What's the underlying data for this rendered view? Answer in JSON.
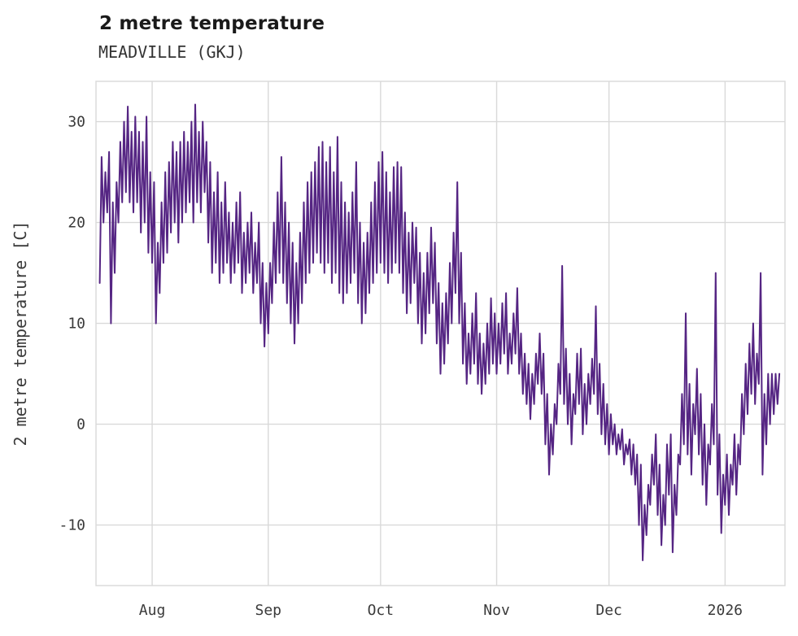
{
  "header": {
    "title": "2 metre temperature",
    "subtitle": "MEADVILLE (GKJ)"
  },
  "colors": {
    "line": "#552583",
    "grid": "#d9d9d9",
    "tick_text": "#3a3a3a",
    "title_text": "#1a1a1a"
  },
  "chart_data": {
    "type": "line",
    "title": "2 metre temperature",
    "subtitle": "MEADVILLE (GKJ)",
    "xlabel": "",
    "ylabel": "2 metre temperature [C]",
    "ylim": [
      -16,
      34
    ],
    "y_ticks": [
      30,
      20,
      10,
      0,
      -10
    ],
    "x_range_days": [
      -1,
      183
    ],
    "x_ticks": [
      {
        "label": "Aug",
        "day": 14
      },
      {
        "label": "Sep",
        "day": 45
      },
      {
        "label": "Oct",
        "day": 75
      },
      {
        "label": "Nov",
        "day": 106
      },
      {
        "label": "Dec",
        "day": 136
      },
      {
        "label": "2026",
        "day": 167
      }
    ],
    "grid": true,
    "legend": "none",
    "line_color": "#552583",
    "points_per_day": 2,
    "series_name": "2 metre temperature [C]",
    "values": [
      14,
      26.5,
      20,
      25,
      21,
      27,
      10,
      22,
      15,
      24,
      20,
      28,
      22,
      30,
      23,
      31.5,
      22,
      29,
      21,
      30.5,
      22,
      29,
      19,
      28,
      20,
      30.5,
      17,
      25,
      16,
      24,
      10,
      18,
      13,
      22,
      16,
      25,
      17,
      26,
      19,
      28,
      20,
      27,
      18,
      28,
      20,
      29,
      21,
      28,
      22,
      30,
      20,
      31.7,
      22,
      29,
      21,
      30,
      23,
      28,
      18,
      26,
      15,
      23,
      16,
      25,
      14,
      22,
      15,
      24,
      16,
      21,
      14,
      20,
      15,
      22,
      16,
      23,
      13,
      19,
      14,
      20,
      15,
      21,
      13,
      18,
      14,
      20,
      10,
      16,
      7.7,
      14,
      9,
      16,
      12,
      20,
      14,
      23,
      15,
      26.5,
      14,
      22,
      12,
      20,
      10,
      18,
      8,
      16,
      10,
      19,
      12,
      22,
      14,
      24,
      15,
      25,
      16,
      26,
      17,
      27.5,
      16,
      28,
      15,
      26,
      16,
      27.5,
      14,
      25,
      15,
      28.5,
      13,
      24,
      12,
      22,
      13,
      21,
      14,
      23,
      15,
      26,
      12,
      20,
      10,
      18,
      11,
      19,
      13,
      22,
      14,
      24,
      15,
      26,
      16,
      27,
      15,
      25,
      14,
      23,
      15,
      25.5,
      16,
      26,
      15,
      25.5,
      13,
      21,
      11,
      19,
      12,
      20,
      14,
      19.5,
      10,
      17,
      8,
      15,
      9,
      17,
      11,
      19.5,
      12,
      18,
      8,
      14,
      5,
      12,
      6,
      13,
      8,
      16,
      10,
      19,
      13,
      24,
      10,
      17,
      6,
      12,
      4,
      9,
      5,
      11,
      6,
      13,
      4,
      9,
      3,
      8,
      4,
      10,
      5,
      12.5,
      6,
      11,
      5,
      10,
      6,
      12,
      7,
      13,
      5,
      9,
      6,
      11,
      7,
      13.5,
      5,
      9,
      3,
      7,
      2,
      6,
      0.5,
      5,
      2,
      7,
      4,
      9,
      3,
      7,
      -2,
      3,
      -5,
      0,
      -3,
      2,
      0,
      6,
      3,
      15.7,
      2,
      7.5,
      0,
      5,
      -2,
      3,
      1,
      7,
      2,
      7.5,
      -1,
      4,
      0,
      5,
      2,
      6.5,
      3,
      11.7,
      1,
      6,
      -1,
      4,
      -2,
      2,
      -3,
      1,
      -2,
      0,
      -3,
      -1,
      -2.5,
      -0.5,
      -4,
      -2,
      -3,
      -1.5,
      -5,
      -2,
      -6,
      -3,
      -10,
      -4,
      -13.5,
      -8,
      -11,
      -6,
      -8,
      -3,
      -6,
      -1,
      -9,
      -4,
      -12,
      -7,
      -10,
      -2,
      -7,
      -1,
      -12.7,
      -6,
      -9,
      -3,
      -4,
      3,
      -2,
      11,
      -3,
      4,
      -5,
      2,
      -1,
      5.5,
      -3,
      3,
      -6,
      0,
      -8,
      -2,
      -4,
      2,
      -2,
      15,
      -7,
      -1,
      -10.8,
      -5,
      -8,
      -3,
      -9,
      -4,
      -6,
      -1,
      -7,
      -2,
      -4,
      3,
      -1,
      6,
      1,
      8,
      3,
      10,
      2,
      7,
      4,
      15,
      -5,
      3,
      -2,
      5,
      0,
      5,
      1,
      5,
      2,
      5
    ]
  }
}
